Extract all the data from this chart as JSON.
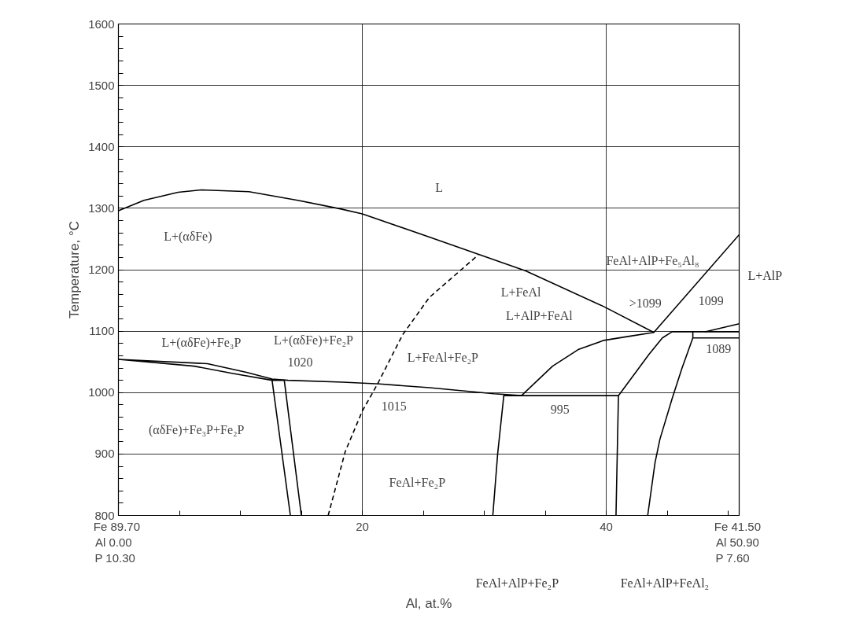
{
  "chart_data": {
    "type": "line",
    "xlabel": "Al, at.%",
    "ylabel": "Temperature, °C",
    "xlim": [
      0,
      50.9
    ],
    "ylim": [
      800,
      1600
    ],
    "xticks": [
      {
        "value": 0,
        "label": "Fe  89.70\nAl    0.00\nP   10.30"
      },
      {
        "value": 5,
        "label": null
      },
      {
        "value": 10,
        "label": null
      },
      {
        "value": 15,
        "label": null
      },
      20,
      {
        "value": 25,
        "label": null
      },
      {
        "value": 30,
        "label": null
      },
      {
        "value": 35,
        "label": null
      },
      40,
      {
        "value": 45,
        "label": null
      },
      {
        "value": 50,
        "label": null
      },
      {
        "value": 50.9,
        "label": "Fe  41.50\nAl  50.90\nP     7.60"
      }
    ],
    "yticks": [
      800,
      {
        "value": 820,
        "label": null
      },
      {
        "value": 840,
        "label": null
      },
      {
        "value": 860,
        "label": null
      },
      {
        "value": 880,
        "label": null
      },
      900,
      {
        "value": 920,
        "label": null
      },
      {
        "value": 940,
        "label": null
      },
      {
        "value": 960,
        "label": null
      },
      {
        "value": 980,
        "label": null
      },
      1000,
      {
        "value": 1020,
        "label": null
      },
      {
        "value": 1040,
        "label": null
      },
      {
        "value": 1060,
        "label": null
      },
      {
        "value": 1080,
        "label": null
      },
      1100,
      {
        "value": 1120,
        "label": null
      },
      {
        "value": 1140,
        "label": null
      },
      {
        "value": 1160,
        "label": null
      },
      {
        "value": 1180,
        "label": null
      },
      1200,
      {
        "value": 1220,
        "label": null
      },
      {
        "value": 1240,
        "label": null
      },
      {
        "value": 1260,
        "label": null
      },
      {
        "value": 1280,
        "label": null
      },
      1300,
      {
        "value": 1320,
        "label": null
      },
      {
        "value": 1340,
        "label": null
      },
      {
        "value": 1360,
        "label": null
      },
      {
        "value": 1380,
        "label": null
      },
      1400,
      {
        "value": 1420,
        "label": null
      },
      {
        "value": 1440,
        "label": null
      },
      {
        "value": 1460,
        "label": null
      },
      {
        "value": 1480,
        "label": null
      },
      1500,
      {
        "value": 1520,
        "label": null
      },
      {
        "value": 1540,
        "label": null
      },
      {
        "value": 1560,
        "label": null
      },
      {
        "value": 1580,
        "label": null
      },
      1600
    ],
    "grid": true,
    "line_style": "solid",
    "series": [
      {
        "color": "#000000",
        "x": [
          0,
          2.1,
          4.9,
          6.8,
          10.7,
          14.7,
          18.2,
          20.0,
          25.5,
          33.4,
          39.8,
          43.9,
          50.9
        ],
        "values": [
          1296,
          1313,
          1326,
          1330,
          1327,
          1313,
          1299,
          1291,
          1253,
          1198,
          1140,
          1098,
          1257
        ]
      },
      {
        "color": "#000000",
        "x": [
          48.1,
          50.9
        ],
        "values": [
          1099,
          1112
        ]
      },
      {
        "color": "#000000",
        "x": [
          33.05,
          35.6,
          37.7,
          39.8,
          42.0,
          43.9
        ],
        "values": [
          995,
          1043,
          1070,
          1085,
          1092,
          1098
        ]
      },
      {
        "color": "#000000",
        "x": [
          40.8,
          41.0,
          31.6,
          41.0,
          43.5,
          44.6,
          45.4,
          47.1,
          50.9,
          47.1,
          47.1,
          50.9,
          47.1,
          46.2,
          45.4,
          44.4,
          44.0,
          43.4
        ],
        "values": [
          800,
          995,
          995,
          995,
          1062,
          1089,
          1099,
          1099,
          1099,
          1099,
          1089,
          1089,
          1089,
          1039,
          990,
          924,
          886,
          800
        ]
      },
      {
        "color": "#000000",
        "x": [
          12.6,
          9.4,
          6.2,
          0,
          7.3,
          10.5,
          12.6,
          13.9,
          18.4,
          21.4,
          25.5,
          30.8,
          33.05
        ],
        "values": [
          1020,
          1031,
          1043,
          1054,
          1047,
          1033,
          1022,
          1020,
          1017,
          1014,
          1008,
          998,
          995
        ]
      },
      {
        "color": "#000000",
        "x": [
          14.1,
          12.6,
          13.6,
          15.0
        ],
        "values": [
          800,
          1020,
          1020,
          800
        ]
      },
      {
        "color": "#000000",
        "x": [
          31.6,
          31.1,
          30.7
        ],
        "values": [
          995,
          901,
          800
        ]
      },
      {
        "color": "#000000",
        "line_style": "dashed",
        "x": [
          17.2,
          18.6,
          20.0,
          21.3,
          23.3,
          25.5,
          29.5
        ],
        "values": [
          800,
          904,
          970,
          1016,
          1094,
          1155,
          1224
        ]
      }
    ],
    "annotations": [
      "L",
      "L+(αδFe)",
      "L+(αδFe)+Fe₃P",
      "1020",
      "L+(αδFe)+Fe₂P",
      "1015",
      "(αδFe)+Fe₃P+Fe₂P",
      "FeAl+Fe₂P",
      "995",
      "L+FeAl",
      "L+AlP+FeAl",
      "L+FeAl+Fe₂P",
      "FeAl+AlP+Fe₅Al₈",
      ">1099",
      "1099",
      "L+AlP",
      "1089",
      "FeAl+AlP+Fe₂P",
      "FeAl+AlP+FeAl₂"
    ]
  }
}
